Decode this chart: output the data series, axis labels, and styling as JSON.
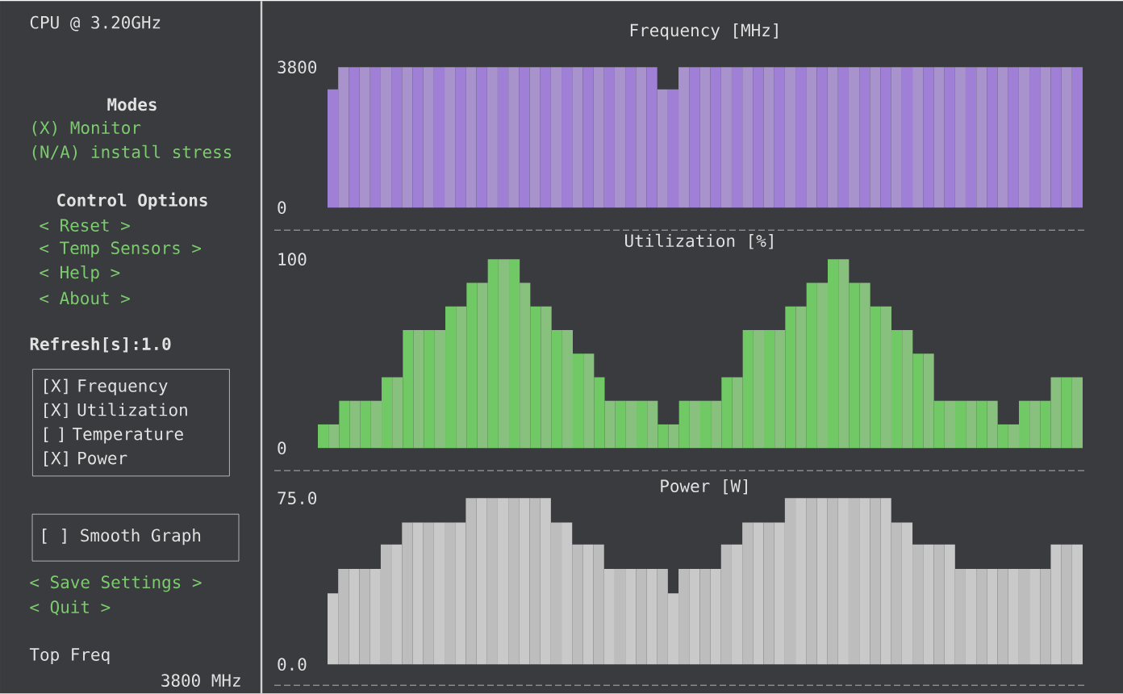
{
  "chart_data": [
    {
      "type": "other",
      "annotations": [
        "CPU @ 3.20GHz",
        "Modes",
        "(X) Monitor",
        "(N/A) install stress",
        "Control Options",
        "< Reset >",
        "< Temp Sensors >",
        "< Help >",
        "< About >",
        "Refresh[s]:1.0",
        "[X] Frequency",
        "[X] Utilization",
        "[ ] Temperature",
        "[X] Power",
        "[ ] Smooth Graph",
        "< Save Settings >",
        "< Quit >",
        "Top Freq",
        "3800 MHz"
      ]
    },
    {
      "type": "bar",
      "title": "Frequency [MHz]",
      "colors": [
        "#9f80d6",
        "#a893cc",
        "#9f80d6",
        "#a893cc",
        "#9f80d6",
        "#a893cc",
        "#9f80d6",
        "#a893cc",
        "#9f80d6",
        "#a893cc",
        "#9f80d6",
        "#a893cc",
        "#9f80d6",
        "#a893cc",
        "#9f80d6",
        "#a893cc",
        "#9f80d6",
        "#a893cc",
        "#9f80d6",
        "#a893cc",
        "#9f80d6",
        "#a893cc",
        "#9f80d6",
        "#a893cc",
        "#9f80d6",
        "#a893cc",
        "#9f80d6",
        "#a893cc",
        "#9f80d6",
        "#a893cc",
        "#9f80d6",
        "#a893cc",
        "#9f80d6",
        "#a893cc",
        "#9f80d6",
        "#a893cc",
        "#9f80d6",
        "#a893cc",
        "#9f80d6",
        "#a893cc",
        "#9f80d6",
        "#a893cc",
        "#9f80d6",
        "#a893cc",
        "#9f80d6",
        "#a893cc",
        "#9f80d6",
        "#a893cc",
        "#9f80d6",
        "#a893cc",
        "#9f80d6",
        "#a893cc",
        "#9f80d6",
        "#a893cc",
        "#9f80d6",
        "#a893cc",
        "#9f80d6",
        "#a893cc",
        "#9f80d6",
        "#a893cc",
        "#9f80d6",
        "#a893cc",
        "#9f80d6",
        "#a893cc",
        "#9f80d6",
        "#a893cc",
        "#9f80d6",
        "#a893cc",
        "#9f80d6",
        "#a893cc",
        "#9f80d6"
      ],
      "ylim": [
        0,
        3800
      ],
      "yticks": [
        0,
        3800
      ],
      "categories": [
        null,
        null,
        null,
        null,
        null,
        null,
        null,
        null,
        null,
        null,
        null,
        null,
        null,
        null,
        null,
        null,
        null,
        null,
        null,
        null,
        null,
        null,
        null,
        null,
        null,
        null,
        null,
        null,
        null,
        null,
        null,
        null,
        null,
        null,
        null,
        null,
        null,
        null,
        null,
        null,
        null,
        null,
        null,
        null,
        null,
        null,
        null,
        null,
        null,
        null,
        null,
        null,
        null,
        null,
        null,
        null,
        null,
        null,
        null,
        null,
        null,
        null,
        null,
        null,
        null,
        null,
        null,
        null,
        null,
        null,
        null
      ],
      "values": [
        3200,
        3800,
        3800,
        3800,
        3800,
        3800,
        3800,
        3800,
        3800,
        3800,
        3800,
        3800,
        3800,
        3800,
        3800,
        3800,
        3800,
        3800,
        3800,
        3800,
        3800,
        3800,
        3800,
        3800,
        3800,
        3800,
        3800,
        3800,
        3800,
        3800,
        3800,
        3200,
        3200,
        3800,
        3800,
        3800,
        3800,
        3800,
        3800,
        3800,
        3800,
        3800,
        3800,
        3800,
        3800,
        3800,
        3800,
        3800,
        3800,
        3800,
        3800,
        3800,
        3800,
        3800,
        3800,
        3800,
        3800,
        3800,
        3800,
        3800,
        3800,
        3800,
        3800,
        3800,
        3800,
        3800,
        3800,
        3800,
        3800,
        3800,
        3800
      ]
    },
    {
      "type": "bar",
      "title": "Utilization [%]",
      "colors": [
        "#70c964",
        "#88c07d",
        "#70c964",
        "#88c07d",
        "#70c964",
        "#88c07d",
        "#70c964",
        "#88c07d",
        "#70c964",
        "#88c07d",
        "#70c964",
        "#88c07d",
        "#70c964",
        "#88c07d",
        "#70c964",
        "#88c07d",
        "#70c964",
        "#88c07d",
        "#70c964",
        "#88c07d",
        "#70c964",
        "#88c07d",
        "#70c964",
        "#88c07d",
        "#70c964",
        "#88c07d",
        "#70c964",
        "#88c07d",
        "#70c964",
        "#88c07d",
        "#70c964",
        "#88c07d",
        "#70c964",
        "#88c07d",
        "#70c964",
        "#88c07d",
        "#70c964",
        "#88c07d",
        "#70c964",
        "#88c07d",
        "#70c964",
        "#88c07d",
        "#70c964",
        "#88c07d",
        "#70c964",
        "#88c07d",
        "#70c964",
        "#88c07d",
        "#70c964",
        "#88c07d",
        "#70c964",
        "#88c07d",
        "#70c964",
        "#88c07d",
        "#70c964",
        "#88c07d",
        "#70c964",
        "#88c07d",
        "#70c964",
        "#88c07d",
        "#70c964",
        "#88c07d",
        "#70c964",
        "#88c07d",
        "#70c964",
        "#88c07d",
        "#70c964",
        "#88c07d",
        "#70c964",
        "#88c07d",
        "#70c964",
        "#88c07d"
      ],
      "ylim": [
        0,
        100
      ],
      "yticks": [
        0,
        100
      ],
      "categories": [
        null,
        null,
        null,
        null,
        null,
        null,
        null,
        null,
        null,
        null,
        null,
        null,
        null,
        null,
        null,
        null,
        null,
        null,
        null,
        null,
        null,
        null,
        null,
        null,
        null,
        null,
        null,
        null,
        null,
        null,
        null,
        null,
        null,
        null,
        null,
        null,
        null,
        null,
        null,
        null,
        null,
        null,
        null,
        null,
        null,
        null,
        null,
        null,
        null,
        null,
        null,
        null,
        null,
        null,
        null,
        null,
        null,
        null,
        null,
        null,
        null,
        null,
        null,
        null,
        null,
        null,
        null,
        null,
        null,
        null,
        null,
        null
      ],
      "values": [
        12.5,
        12.5,
        25,
        25,
        25,
        25,
        37.5,
        37.5,
        62.5,
        62.5,
        62.5,
        62.5,
        75,
        75,
        87.5,
        87.5,
        100,
        100,
        100,
        87.5,
        75,
        75,
        62.5,
        62.5,
        50,
        50,
        37.5,
        25,
        25,
        25,
        25,
        25,
        12.5,
        12.5,
        25,
        25,
        25,
        25,
        37.5,
        37.5,
        62.5,
        62.5,
        62.5,
        62.5,
        75,
        75,
        87.5,
        87.5,
        100,
        100,
        87.5,
        87.5,
        75,
        75,
        62.5,
        62.5,
        50,
        50,
        25,
        25,
        25,
        25,
        25,
        25,
        12.5,
        12.5,
        25,
        25,
        25,
        37.5,
        37.5,
        37.5
      ]
    },
    {
      "type": "bar",
      "title": "Power [W]",
      "colors": [
        "#c9c9c9",
        "#bdbdbd",
        "#c9c9c9",
        "#bdbdbd",
        "#c9c9c9",
        "#bdbdbd",
        "#c9c9c9",
        "#bdbdbd",
        "#c9c9c9",
        "#bdbdbd",
        "#c9c9c9",
        "#bdbdbd",
        "#c9c9c9",
        "#bdbdbd",
        "#c9c9c9",
        "#bdbdbd",
        "#c9c9c9",
        "#bdbdbd",
        "#c9c9c9",
        "#bdbdbd",
        "#c9c9c9",
        "#bdbdbd",
        "#c9c9c9",
        "#bdbdbd",
        "#c9c9c9",
        "#bdbdbd",
        "#c9c9c9",
        "#bdbdbd",
        "#c9c9c9",
        "#bdbdbd",
        "#c9c9c9",
        "#bdbdbd",
        "#c9c9c9",
        "#bdbdbd",
        "#c9c9c9",
        "#bdbdbd",
        "#c9c9c9",
        "#bdbdbd",
        "#c9c9c9",
        "#bdbdbd",
        "#c9c9c9",
        "#bdbdbd",
        "#c9c9c9",
        "#bdbdbd",
        "#c9c9c9",
        "#bdbdbd",
        "#c9c9c9",
        "#bdbdbd",
        "#c9c9c9",
        "#bdbdbd",
        "#c9c9c9",
        "#bdbdbd",
        "#c9c9c9",
        "#bdbdbd",
        "#c9c9c9",
        "#bdbdbd",
        "#c9c9c9",
        "#bdbdbd",
        "#c9c9c9",
        "#bdbdbd",
        "#c9c9c9",
        "#bdbdbd",
        "#c9c9c9",
        "#bdbdbd",
        "#c9c9c9",
        "#bdbdbd",
        "#c9c9c9",
        "#bdbdbd",
        "#c9c9c9",
        "#bdbdbd",
        "#c9c9c9"
      ],
      "ylim": [
        0,
        75
      ],
      "yticks": [
        {
          "value": 0,
          "label": "0.0"
        },
        {
          "value": 75,
          "label": "75.0"
        }
      ],
      "categories": [
        null,
        null,
        null,
        null,
        null,
        null,
        null,
        null,
        null,
        null,
        null,
        null,
        null,
        null,
        null,
        null,
        null,
        null,
        null,
        null,
        null,
        null,
        null,
        null,
        null,
        null,
        null,
        null,
        null,
        null,
        null,
        null,
        null,
        null,
        null,
        null,
        null,
        null,
        null,
        null,
        null,
        null,
        null,
        null,
        null,
        null,
        null,
        null,
        null,
        null,
        null,
        null,
        null,
        null,
        null,
        null,
        null,
        null,
        null,
        null,
        null,
        null,
        null,
        null,
        null,
        null,
        null,
        null,
        null,
        null,
        null
      ],
      "values": [
        32,
        43,
        43,
        43,
        43,
        54,
        54,
        64,
        64,
        64,
        64,
        64,
        64,
        75,
        75,
        75,
        75,
        75,
        75,
        75,
        75,
        64,
        64,
        54,
        54,
        54,
        43,
        43,
        43,
        43,
        43,
        43,
        32,
        43,
        43,
        43,
        43,
        54,
        54,
        64,
        64,
        64,
        64,
        75,
        75,
        75,
        75,
        75,
        75,
        75,
        75,
        75,
        75,
        64,
        64,
        54,
        54,
        54,
        54,
        43,
        43,
        43,
        43,
        43,
        43,
        43,
        43,
        43,
        54,
        54,
        54
      ]
    }
  ]
}
